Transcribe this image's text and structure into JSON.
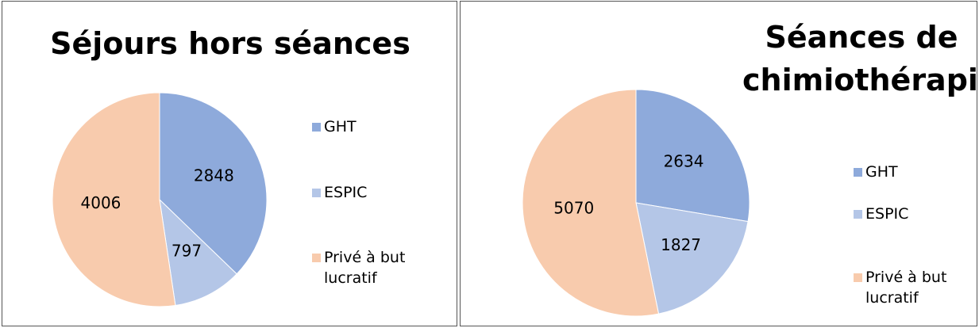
{
  "chart_data": [
    {
      "type": "pie",
      "title": "Séjours hors séances",
      "categories": [
        "GHT",
        "ESPIC",
        "Privé à but lucratif"
      ],
      "values": [
        2848,
        797,
        4006
      ],
      "colors": [
        "#8eaadb",
        "#b4c6e7",
        "#f8cbad"
      ]
    },
    {
      "type": "pie",
      "title": "Séances de chimiothérapie",
      "categories": [
        "GHT",
        "ESPIC",
        "Privé à but lucratif"
      ],
      "values": [
        2634,
        1827,
        5070
      ],
      "colors": [
        "#8eaadb",
        "#b4c6e7",
        "#f8cbad"
      ]
    }
  ]
}
